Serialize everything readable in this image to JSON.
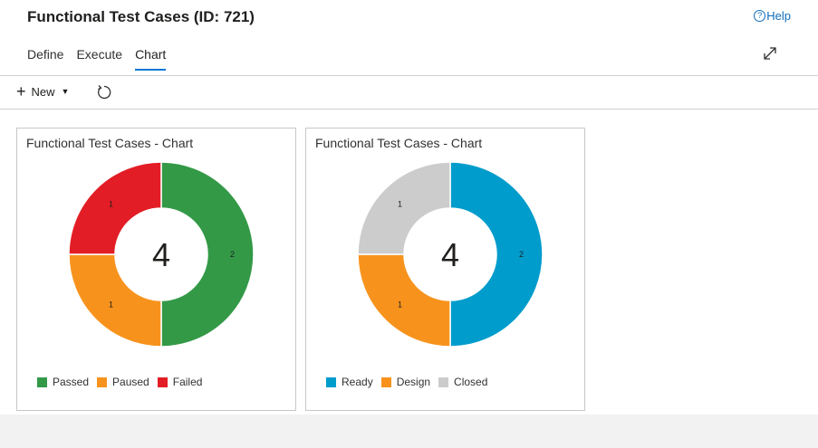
{
  "header": {
    "title": "Functional Test Cases (ID: 721)",
    "help_label": "Help",
    "help_icon": "?"
  },
  "tabs": [
    {
      "label": "Define",
      "active": false
    },
    {
      "label": "Execute",
      "active": false
    },
    {
      "label": "Chart",
      "active": true
    }
  ],
  "toolbar": {
    "new_label": "New"
  },
  "chart_data": [
    {
      "type": "pie",
      "title": "Functional Test Cases - Chart",
      "center_total": "4",
      "categories": [
        "Passed",
        "Paused",
        "Failed"
      ],
      "values": [
        2,
        1,
        1
      ],
      "colors": [
        "#339947",
        "#f7931d",
        "#e31d25"
      ],
      "legend": "bottom"
    },
    {
      "type": "pie",
      "title": "Functional Test Cases - Chart",
      "center_total": "4",
      "categories": [
        "Ready",
        "Design",
        "Closed"
      ],
      "values": [
        2,
        1,
        1
      ],
      "colors": [
        "#009ccc",
        "#f7931d",
        "#cccccc"
      ],
      "legend": "bottom"
    }
  ]
}
